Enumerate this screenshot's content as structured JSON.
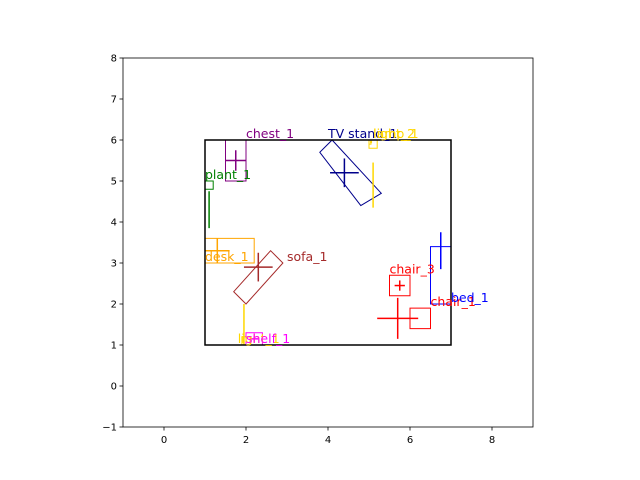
{
  "chart_data": {
    "type": "scatter",
    "title": "",
    "xlabel": "",
    "ylabel": "",
    "xlim": [
      -1,
      9
    ],
    "ylim": [
      -1,
      8
    ],
    "x_ticks": [
      "0",
      "2",
      "4",
      "6",
      "8"
    ],
    "y_ticks": [
      "-1",
      "0",
      "1",
      "2",
      "3",
      "4",
      "5",
      "6",
      "7",
      "8"
    ],
    "grid": false,
    "room": {
      "x0": 1,
      "y0": 1,
      "x1": 7,
      "y1": 6,
      "color": "#000000"
    },
    "objects": [
      {
        "label": "chest_1",
        "color": "#800080",
        "rect": [
          [
            1.5,
            5.0
          ],
          [
            2.0,
            5.0
          ],
          [
            2.0,
            6.0
          ],
          [
            1.5,
            6.0
          ]
        ],
        "cross": [
          1.75,
          5.5
        ],
        "arm_w": 0.5,
        "arm_h": 0.5,
        "label_pos": [
          2.0,
          6.0
        ]
      },
      {
        "label": "TV stand_1",
        "color": "#00008b",
        "rect": [
          [
            4.8,
            4.4
          ],
          [
            5.3,
            4.7
          ],
          [
            4.1,
            6.0
          ],
          [
            3.8,
            5.7
          ]
        ],
        "cross": [
          4.4,
          5.2
        ],
        "arm_w": 0.7,
        "arm_h": 0.7,
        "label_pos": [
          4.0,
          6.0
        ]
      },
      {
        "label": "lamp_1",
        "color": "#ffd700",
        "rect": [
          [
            5.0,
            5.8
          ],
          [
            5.2,
            5.8
          ],
          [
            5.2,
            6.0
          ],
          [
            5.0,
            6.0
          ]
        ],
        "cross": [
          5.1,
          4.9
        ],
        "arm_w": 0.0,
        "arm_h": 1.1,
        "label_pos": [
          5.1,
          6.0
        ]
      },
      {
        "label": "light_2",
        "color": "#ffd700",
        "rect": [
          [
            5.0,
            5.9
          ],
          [
            5.05,
            5.9
          ],
          [
            5.05,
            6.0
          ],
          [
            5.0,
            6.0
          ]
        ],
        "cross": [
          5.05,
          5.95
        ],
        "arm_w": 0.05,
        "arm_h": 0.05,
        "label_pos": [
          5.1,
          6.0
        ]
      },
      {
        "label": "plant_1",
        "color": "#008000",
        "rect": [
          [
            1.0,
            4.8
          ],
          [
            1.2,
            4.8
          ],
          [
            1.2,
            5.0
          ],
          [
            1.0,
            5.0
          ]
        ],
        "cross": [
          1.1,
          4.3
        ],
        "arm_w": 0.0,
        "arm_h": 0.9,
        "label_pos": [
          1.0,
          5.0
        ]
      },
      {
        "label": "desk_1",
        "color": "#ffa500",
        "rect": [
          [
            1.0,
            3.0
          ],
          [
            2.2,
            3.0
          ],
          [
            2.2,
            3.6
          ],
          [
            1.0,
            3.6
          ]
        ],
        "cross": [
          1.3,
          3.3
        ],
        "arm_w": 0.6,
        "arm_h": 0.6,
        "label_pos": [
          1.0,
          3.0
        ]
      },
      {
        "label": "sofa_1",
        "color": "#a52a2a",
        "rect": [
          [
            2.0,
            2.0
          ],
          [
            2.9,
            3.0
          ],
          [
            2.6,
            3.3
          ],
          [
            1.7,
            2.3
          ]
        ],
        "cross": [
          2.3,
          2.9
        ],
        "arm_w": 0.7,
        "arm_h": 0.7,
        "label_pos": [
          3.0,
          3.0
        ]
      },
      {
        "label": "chair_3",
        "color": "#ff0000",
        "rect": [
          [
            5.5,
            2.2
          ],
          [
            6.0,
            2.2
          ],
          [
            6.0,
            2.7
          ],
          [
            5.5,
            2.7
          ]
        ],
        "cross": [
          5.75,
          2.45
        ],
        "arm_w": 0.25,
        "arm_h": 0.25,
        "label_pos": [
          5.5,
          2.7
        ]
      },
      {
        "label": "chair_1",
        "color": "#ff0000",
        "rect": [
          [
            6.0,
            1.4
          ],
          [
            6.5,
            1.4
          ],
          [
            6.5,
            1.9
          ],
          [
            6.0,
            1.9
          ]
        ],
        "cross": [
          5.7,
          1.65
        ],
        "arm_w": 1.0,
        "arm_h": 1.0,
        "label_pos": [
          6.5,
          1.9
        ]
      },
      {
        "label": "bed_1",
        "color": "#0000ff",
        "rect": [
          [
            6.5,
            2.0
          ],
          [
            7.0,
            2.0
          ],
          [
            7.0,
            3.4
          ],
          [
            6.5,
            3.4
          ]
        ],
        "cross": [
          6.75,
          3.3
        ],
        "arm_w": 0.0,
        "arm_h": 0.9,
        "label_pos": [
          7.0,
          2.0
        ]
      },
      {
        "label": "light_1",
        "color": "#ffd700",
        "rect": [
          [
            1.9,
            1.0
          ],
          [
            2.1,
            1.0
          ],
          [
            2.1,
            1.2
          ],
          [
            1.9,
            1.2
          ]
        ],
        "cross": [
          1.95,
          1.5
        ],
        "arm_w": 0.0,
        "arm_h": 1.0,
        "label_pos": [
          1.8,
          1.0
        ]
      },
      {
        "label": "shelf_1",
        "color": "#ff00ff",
        "rect": [
          [
            2.0,
            1.0
          ],
          [
            2.4,
            1.0
          ],
          [
            2.4,
            1.3
          ],
          [
            2.0,
            1.3
          ]
        ],
        "cross": [
          2.2,
          1.15
        ],
        "arm_w": 0.2,
        "arm_h": 0.15,
        "label_pos": [
          2.0,
          1.0
        ]
      }
    ]
  }
}
